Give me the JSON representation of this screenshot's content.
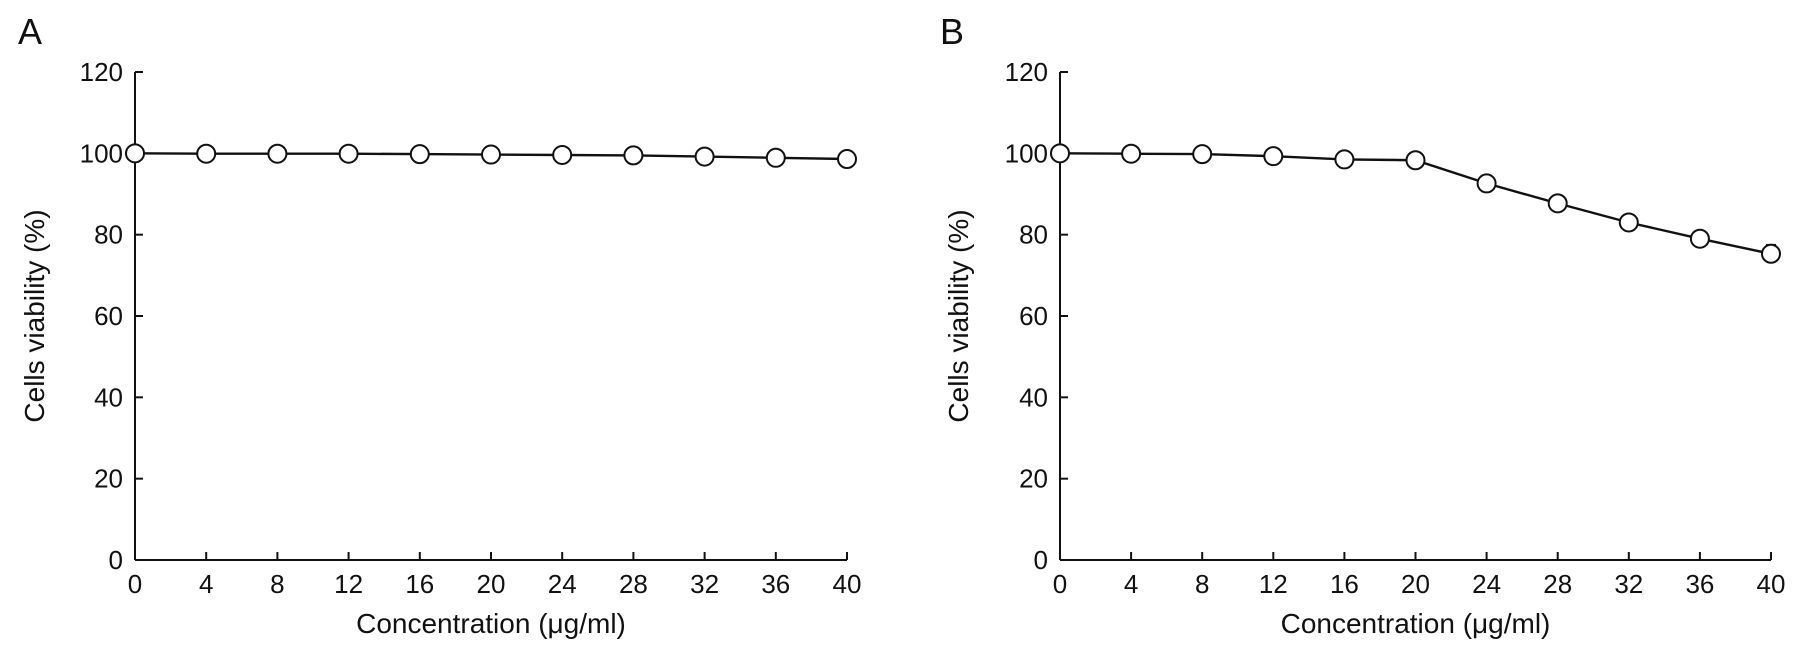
{
  "chart_data": [
    {
      "panel_label": "A",
      "type": "line",
      "xlabel": "Concentration (μg/ml)",
      "ylabel": "Cells viability (%)",
      "xlim": [
        0,
        40
      ],
      "ylim": [
        0,
        120
      ],
      "xticks": [
        0,
        4,
        8,
        12,
        16,
        20,
        24,
        28,
        32,
        36,
        40
      ],
      "yticks": [
        0,
        20,
        40,
        60,
        80,
        100,
        120
      ],
      "x": [
        0,
        4,
        8,
        12,
        16,
        20,
        24,
        28,
        32,
        36,
        40
      ],
      "y": [
        100,
        99.9,
        99.9,
        99.9,
        99.8,
        99.7,
        99.6,
        99.5,
        99.2,
        98.9,
        98.6
      ],
      "y_err": [
        0,
        0,
        0,
        0,
        0,
        0,
        0,
        0,
        0,
        0,
        0
      ],
      "marker": "open-circle",
      "grid": false
    },
    {
      "panel_label": "B",
      "type": "line",
      "xlabel": "Concentration (μg/ml)",
      "ylabel": "Cells viability (%)",
      "xlim": [
        0,
        40
      ],
      "ylim": [
        0,
        120
      ],
      "xticks": [
        0,
        4,
        8,
        12,
        16,
        20,
        24,
        28,
        32,
        36,
        40
      ],
      "yticks": [
        0,
        20,
        40,
        60,
        80,
        100,
        120
      ],
      "x": [
        0,
        4,
        8,
        12,
        16,
        20,
        24,
        28,
        32,
        36,
        40
      ],
      "y": [
        100,
        99.9,
        99.8,
        99.3,
        98.5,
        98.3,
        92.6,
        87.7,
        83.0,
        79.0,
        75.3
      ],
      "y_err": [
        0,
        0,
        0,
        0,
        0,
        0,
        0,
        0,
        0,
        0,
        2.2
      ],
      "marker": "open-circle",
      "grid": false
    }
  ]
}
